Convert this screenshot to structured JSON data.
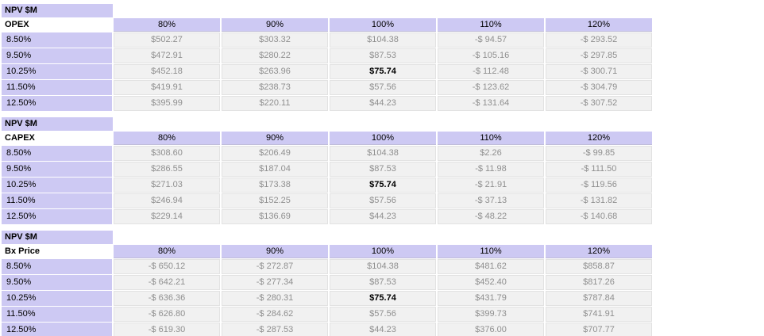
{
  "colors": {
    "lavender": "#cdc9f3",
    "cell_bg": "#f1f1f1",
    "cell_text": "#8f8f8f",
    "highlight_text": "#000000"
  },
  "chart_data": [
    {
      "type": "table",
      "title": "NPV $M",
      "subtitle": "OPEX",
      "columns": [
        "80%",
        "90%",
        "100%",
        "110%",
        "120%"
      ],
      "row_labels": [
        "8.50%",
        "9.50%",
        "10.25%",
        "11.50%",
        "12.50%"
      ],
      "rows": [
        [
          "$502.27",
          "$303.32",
          "$104.38",
          "-$ 94.57",
          "-$ 293.52"
        ],
        [
          "$472.91",
          "$280.22",
          "$87.53",
          "-$ 105.16",
          "-$ 297.85"
        ],
        [
          "$452.18",
          "$263.96",
          "$75.74",
          "-$ 112.48",
          "-$ 300.71"
        ],
        [
          "$419.91",
          "$238.73",
          "$57.56",
          "-$ 123.62",
          "-$ 304.79"
        ],
        [
          "$395.99",
          "$220.11",
          "$44.23",
          "-$ 131.64",
          "-$ 307.52"
        ]
      ],
      "highlight": {
        "row": 2,
        "col": 2
      }
    },
    {
      "type": "table",
      "title": "NPV $M",
      "subtitle": "CAPEX",
      "columns": [
        "80%",
        "90%",
        "100%",
        "110%",
        "120%"
      ],
      "row_labels": [
        "8.50%",
        "9.50%",
        "10.25%",
        "11.50%",
        "12.50%"
      ],
      "rows": [
        [
          "$308.60",
          "$206.49",
          "$104.38",
          "$2.26",
          "-$ 99.85"
        ],
        [
          "$286.55",
          "$187.04",
          "$87.53",
          "-$ 11.98",
          "-$ 111.50"
        ],
        [
          "$271.03",
          "$173.38",
          "$75.74",
          "-$ 21.91",
          "-$ 119.56"
        ],
        [
          "$246.94",
          "$152.25",
          "$57.56",
          "-$ 37.13",
          "-$ 131.82"
        ],
        [
          "$229.14",
          "$136.69",
          "$44.23",
          "-$ 48.22",
          "-$ 140.68"
        ]
      ],
      "highlight": {
        "row": 2,
        "col": 2
      }
    },
    {
      "type": "table",
      "title": "NPV $M",
      "subtitle": "Bx Price",
      "columns": [
        "80%",
        "90%",
        "100%",
        "110%",
        "120%"
      ],
      "row_labels": [
        "8.50%",
        "9.50%",
        "10.25%",
        "11.50%",
        "12.50%"
      ],
      "rows": [
        [
          "-$ 650.12",
          "-$ 272.87",
          "$104.38",
          "$481.62",
          "$858.87"
        ],
        [
          "-$ 642.21",
          "-$ 277.34",
          "$87.53",
          "$452.40",
          "$817.26"
        ],
        [
          "-$ 636.36",
          "-$ 280.31",
          "$75.74",
          "$431.79",
          "$787.84"
        ],
        [
          "-$ 626.80",
          "-$ 284.62",
          "$57.56",
          "$399.73",
          "$741.91"
        ],
        [
          "-$ 619.30",
          "-$ 287.53",
          "$44.23",
          "$376.00",
          "$707.77"
        ]
      ],
      "highlight": {
        "row": 2,
        "col": 2
      }
    }
  ]
}
